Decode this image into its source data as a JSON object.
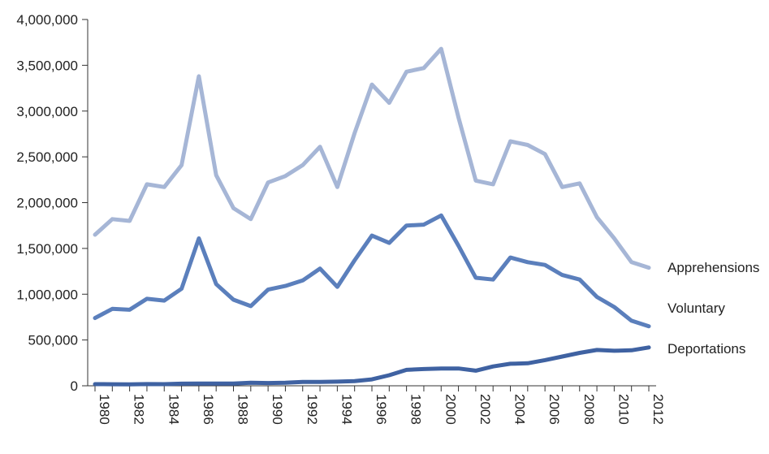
{
  "chart_data": {
    "type": "line",
    "title": "",
    "xlabel": "",
    "ylabel": "",
    "x": [
      1980,
      1981,
      1982,
      1983,
      1984,
      1985,
      1986,
      1987,
      1988,
      1989,
      1990,
      1991,
      1992,
      1993,
      1994,
      1995,
      1996,
      1997,
      1998,
      1999,
      2000,
      2001,
      2002,
      2003,
      2004,
      2005,
      2006,
      2007,
      2008,
      2009,
      2010,
      2011,
      2012
    ],
    "xticks": [
      "1980",
      "1982",
      "1984",
      "1986",
      "1988",
      "1990",
      "1992",
      "1994",
      "1996",
      "1998",
      "2000",
      "2002",
      "2004",
      "2006",
      "2008",
      "2010",
      "2012"
    ],
    "ylim": [
      0,
      4000000
    ],
    "yticks": [
      "0",
      "500,000",
      "1,000,000",
      "1,500,000",
      "2,000,000",
      "2,500,000",
      "3,000,000",
      "3,500,000",
      "4,000,000"
    ],
    "grid": false,
    "legend_placement": "right, at line ends",
    "series": [
      {
        "name": "Apprehensions",
        "color": "#a6b6d6",
        "values": [
          1650000,
          1820000,
          1800000,
          2200000,
          2170000,
          2410000,
          3380000,
          2300000,
          1940000,
          1820000,
          2220000,
          2290000,
          2410000,
          2610000,
          2170000,
          2760000,
          3290000,
          3090000,
          3430000,
          3470000,
          3680000,
          2930000,
          2240000,
          2200000,
          2670000,
          2630000,
          2530000,
          2170000,
          2210000,
          1840000,
          1610000,
          1350000,
          1290000
        ]
      },
      {
        "name": "Voluntary",
        "color": "#5b7fbc",
        "values": [
          740000,
          840000,
          830000,
          950000,
          930000,
          1060000,
          1610000,
          1110000,
          940000,
          870000,
          1050000,
          1090000,
          1150000,
          1280000,
          1080000,
          1370000,
          1640000,
          1560000,
          1750000,
          1760000,
          1860000,
          1530000,
          1180000,
          1160000,
          1400000,
          1350000,
          1320000,
          1210000,
          1160000,
          970000,
          860000,
          710000,
          650000
        ]
      },
      {
        "name": "Deportations",
        "color": "#3f62a2",
        "values": [
          18000,
          17000,
          15000,
          19000,
          18000,
          23000,
          25000,
          24000,
          25000,
          34000,
          30000,
          33000,
          43000,
          42000,
          45000,
          51000,
          70000,
          115000,
          174000,
          183000,
          188000,
          189000,
          165000,
          211000,
          240000,
          246000,
          280000,
          319000,
          359000,
          391000,
          382000,
          388000,
          419000
        ]
      }
    ]
  }
}
